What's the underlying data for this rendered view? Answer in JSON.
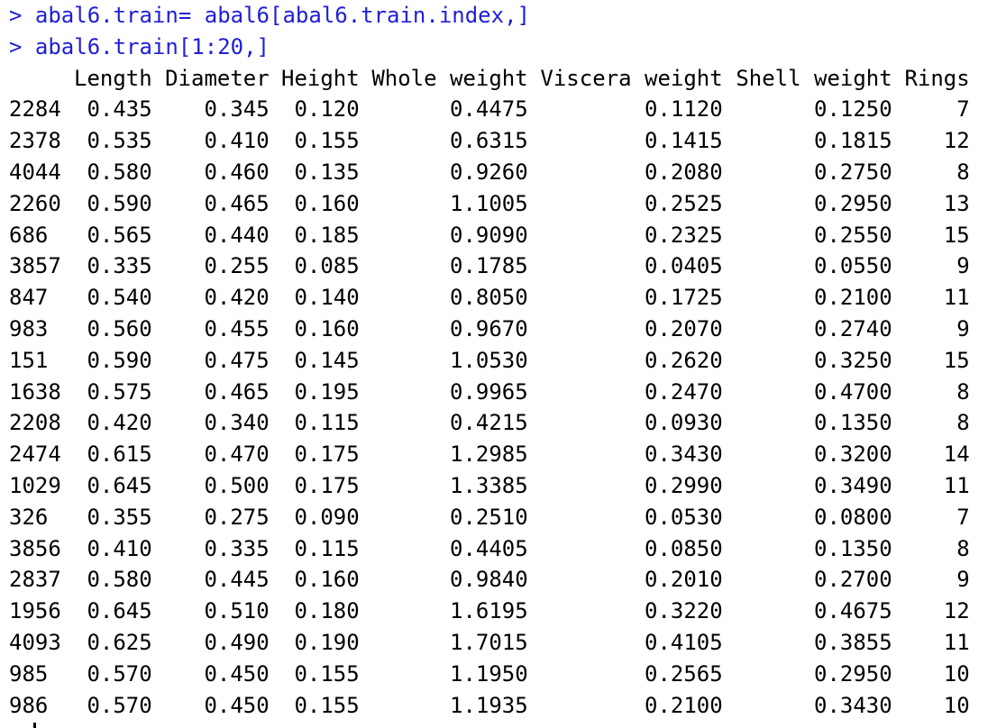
{
  "console": {
    "prompt": ">",
    "commands": [
      "abal6.train= abal6[abal6.train.index,]",
      "abal6.train[1:20,]"
    ]
  },
  "output": {
    "columns": [
      "Length",
      "Diameter",
      "Height",
      "Whole weight",
      "Viscera weight",
      "Shell weight",
      "Rings"
    ],
    "rows": [
      {
        "id": "2284",
        "cells": [
          "0.435",
          "0.345",
          "0.120",
          "0.4475",
          "0.1120",
          "0.1250",
          "7"
        ]
      },
      {
        "id": "2378",
        "cells": [
          "0.535",
          "0.410",
          "0.155",
          "0.6315",
          "0.1415",
          "0.1815",
          "12"
        ]
      },
      {
        "id": "4044",
        "cells": [
          "0.580",
          "0.460",
          "0.135",
          "0.9260",
          "0.2080",
          "0.2750",
          "8"
        ]
      },
      {
        "id": "2260",
        "cells": [
          "0.590",
          "0.465",
          "0.160",
          "1.1005",
          "0.2525",
          "0.2950",
          "13"
        ]
      },
      {
        "id": "686",
        "cells": [
          "0.565",
          "0.440",
          "0.185",
          "0.9090",
          "0.2325",
          "0.2550",
          "15"
        ]
      },
      {
        "id": "3857",
        "cells": [
          "0.335",
          "0.255",
          "0.085",
          "0.1785",
          "0.0405",
          "0.0550",
          "9"
        ]
      },
      {
        "id": "847",
        "cells": [
          "0.540",
          "0.420",
          "0.140",
          "0.8050",
          "0.1725",
          "0.2100",
          "11"
        ]
      },
      {
        "id": "983",
        "cells": [
          "0.560",
          "0.455",
          "0.160",
          "0.9670",
          "0.2070",
          "0.2740",
          "9"
        ]
      },
      {
        "id": "151",
        "cells": [
          "0.590",
          "0.475",
          "0.145",
          "1.0530",
          "0.2620",
          "0.3250",
          "15"
        ]
      },
      {
        "id": "1638",
        "cells": [
          "0.575",
          "0.465",
          "0.195",
          "0.9965",
          "0.2470",
          "0.4700",
          "8"
        ]
      },
      {
        "id": "2208",
        "cells": [
          "0.420",
          "0.340",
          "0.115",
          "0.4215",
          "0.0930",
          "0.1350",
          "8"
        ]
      },
      {
        "id": "2474",
        "cells": [
          "0.615",
          "0.470",
          "0.175",
          "1.2985",
          "0.3430",
          "0.3200",
          "14"
        ]
      },
      {
        "id": "1029",
        "cells": [
          "0.645",
          "0.500",
          "0.175",
          "1.3385",
          "0.2990",
          "0.3490",
          "11"
        ]
      },
      {
        "id": "326",
        "cells": [
          "0.355",
          "0.275",
          "0.090",
          "0.2510",
          "0.0530",
          "0.0800",
          "7"
        ]
      },
      {
        "id": "3856",
        "cells": [
          "0.410",
          "0.335",
          "0.115",
          "0.4405",
          "0.0850",
          "0.1350",
          "8"
        ]
      },
      {
        "id": "2837",
        "cells": [
          "0.580",
          "0.445",
          "0.160",
          "0.9840",
          "0.2010",
          "0.2700",
          "9"
        ]
      },
      {
        "id": "1956",
        "cells": [
          "0.645",
          "0.510",
          "0.180",
          "1.6195",
          "0.3220",
          "0.4675",
          "12"
        ]
      },
      {
        "id": "4093",
        "cells": [
          "0.625",
          "0.490",
          "0.190",
          "1.7015",
          "0.4105",
          "0.3855",
          "11"
        ]
      },
      {
        "id": "985",
        "cells": [
          "0.570",
          "0.450",
          "0.155",
          "1.1950",
          "0.2565",
          "0.2950",
          "10"
        ]
      },
      {
        "id": "986",
        "cells": [
          "0.570",
          "0.450",
          "0.155",
          "1.1935",
          "0.2100",
          "0.3430",
          "10"
        ]
      }
    ]
  },
  "colors": {
    "command_text": "#1f1fd6",
    "output_text": "#000000",
    "background": "#ffffff"
  }
}
